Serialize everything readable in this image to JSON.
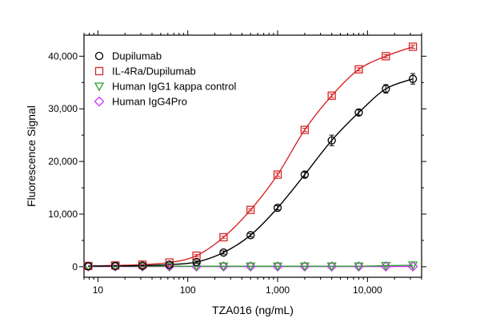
{
  "chart_data": {
    "type": "scatter",
    "xlabel": "TZA016 (ng/mL)",
    "ylabel": "Fluorescence Signal",
    "x_scale": "log",
    "xlim": [
      7,
      40000
    ],
    "ylim": [
      -2000,
      44000
    ],
    "x_ticks": [
      10,
      100,
      1000,
      10000
    ],
    "x_tick_labels": [
      "10",
      "100",
      "1,000",
      "10,000"
    ],
    "y_ticks": [
      0,
      10000,
      20000,
      30000,
      40000
    ],
    "y_tick_labels": [
      "0",
      "10,000",
      "20,000",
      "30,000",
      "40,000"
    ],
    "grid": false,
    "legend_position": "top-left",
    "x": [
      7.8,
      15.6,
      31.3,
      62.5,
      125,
      250,
      500,
      1000,
      2000,
      4000,
      8000,
      16000,
      32000
    ],
    "series": [
      {
        "name": "Dupilumab",
        "marker": "circle",
        "color": "#000000",
        "values": [
          100,
          150,
          200,
          400,
          900,
          2700,
          6000,
          11200,
          17500,
          24000,
          29300,
          33800,
          35700
        ],
        "errors": [
          0,
          0,
          0,
          0,
          200,
          300,
          300,
          400,
          500,
          1000,
          500,
          800,
          1000
        ],
        "fit": true
      },
      {
        "name": "IL-4Ra/Dupilumab",
        "marker": "square",
        "color": "#d62728",
        "values": [
          150,
          250,
          400,
          800,
          2100,
          5600,
          10800,
          17500,
          26000,
          32500,
          37500,
          40000,
          41800
        ],
        "errors": [
          0,
          0,
          0,
          0,
          200,
          200,
          200,
          300,
          300,
          300,
          300,
          300,
          300
        ],
        "fit": true
      },
      {
        "name": "Human IgG1 kappa control",
        "marker": "triangle-down",
        "color": "#2ca02c",
        "values": [
          100,
          100,
          100,
          100,
          100,
          100,
          100,
          100,
          100,
          100,
          100,
          200,
          300
        ],
        "fit": true
      },
      {
        "name": "Human IgG4Pro",
        "marker": "diamond",
        "color": "#cc33ff",
        "values": [
          50,
          50,
          50,
          50,
          50,
          50,
          50,
          50,
          50,
          50,
          50,
          50,
          50
        ],
        "fit": true
      }
    ]
  }
}
